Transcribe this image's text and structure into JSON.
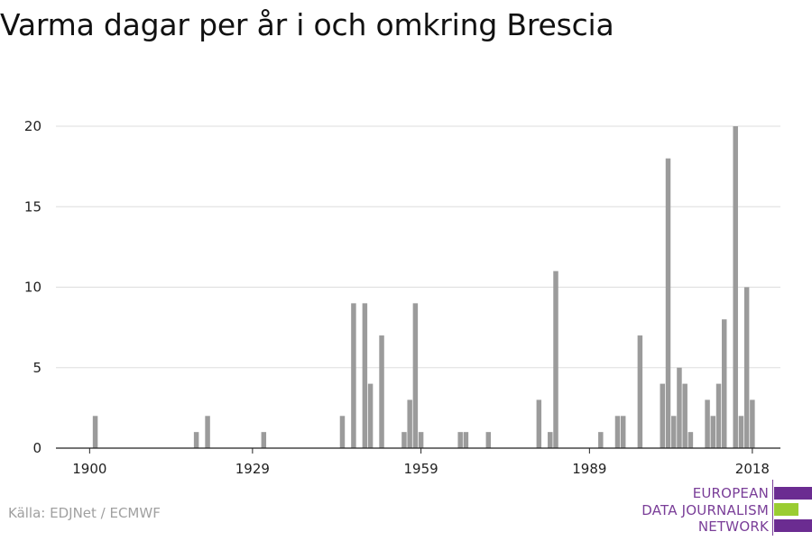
{
  "title": "Varma dagar per år i och omkring Brescia",
  "source": "Källa: EDJNet / ECMWF",
  "logo": {
    "line1": "EUROPEAN",
    "line2": "DATA JOURNALISM",
    "line3": "NETWORK",
    "colors": {
      "purple": "#6b2c91",
      "green": "#9acd32",
      "text": "#7a3e98"
    }
  },
  "chart_data": {
    "type": "bar",
    "bar_color": "#9b9b9b",
    "grid": true,
    "xlim": [
      1894,
      2023
    ],
    "ylim": [
      0,
      20
    ],
    "x_ticks": [
      1900,
      1929,
      1959,
      1989,
      2018
    ],
    "y_ticks": [
      0,
      5,
      10,
      15,
      20
    ],
    "x": [
      1901,
      1919,
      1921,
      1931,
      1945,
      1947,
      1949,
      1950,
      1952,
      1956,
      1957,
      1958,
      1959,
      1966,
      1967,
      1971,
      1980,
      1982,
      1983,
      1991,
      1994,
      1995,
      1998,
      2002,
      2003,
      2004,
      2005,
      2006,
      2007,
      2010,
      2011,
      2012,
      2013,
      2015,
      2016,
      2017,
      2018
    ],
    "values": [
      2,
      1,
      2,
      1,
      2,
      9,
      9,
      4,
      7,
      1,
      3,
      9,
      1,
      1,
      1,
      1,
      3,
      1,
      11,
      1,
      2,
      2,
      7,
      4,
      18,
      2,
      5,
      4,
      1,
      3,
      2,
      4,
      8,
      20,
      2,
      10,
      3
    ]
  }
}
